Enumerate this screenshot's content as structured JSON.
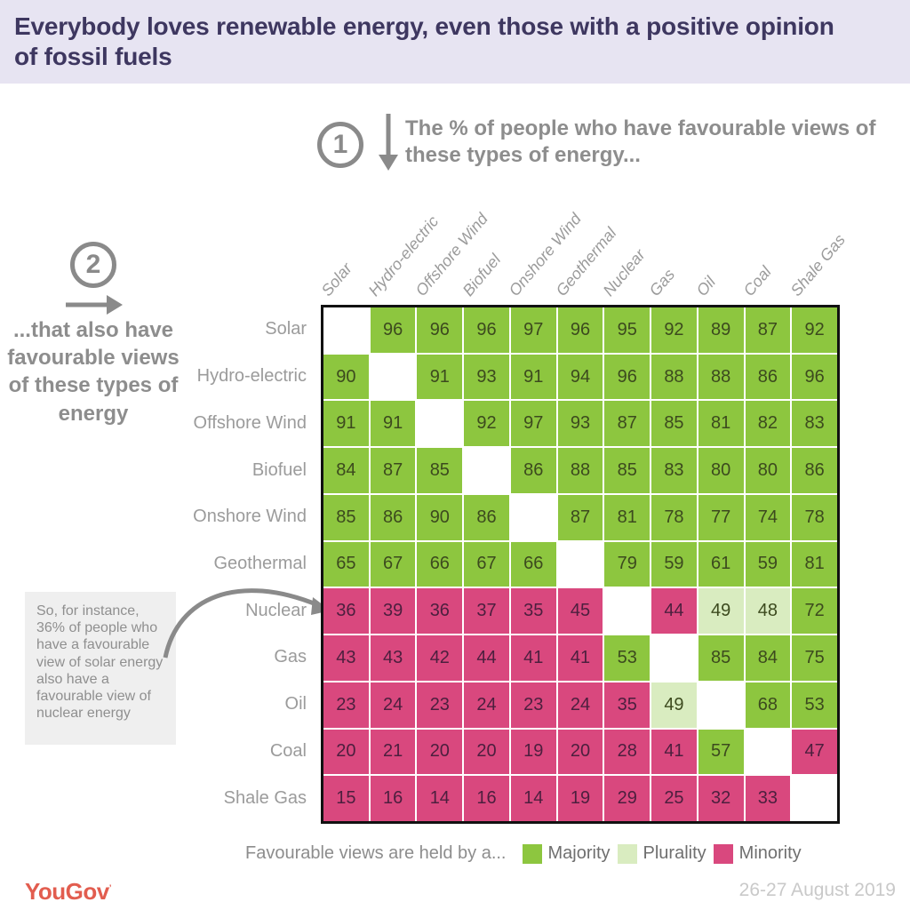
{
  "header": {
    "title": "Everybody loves renewable energy, even those with a positive opinion of fossil fuels"
  },
  "annotations": {
    "step1": {
      "number": "1",
      "text": "The % of people who have favourable views of these types of energy..."
    },
    "step2": {
      "number": "2",
      "text": "...that also have favourable views of these types of energy"
    },
    "callout": {
      "text": "So, for instance, 36% of people who have a favourable view of solar energy also have a favourable view of nuclear energy"
    }
  },
  "chart_data": {
    "type": "heatmap",
    "title": "Everybody loves renewable energy, even those with a positive opinion of fossil fuels",
    "columns": [
      "Solar",
      "Hydro-electric",
      "Offshore Wind",
      "Biofuel",
      "Onshore Wind",
      "Geothermal",
      "Nuclear",
      "Gas",
      "Oil",
      "Coal",
      "Shale Gas"
    ],
    "rows": [
      {
        "label": "Solar",
        "values": [
          null,
          96,
          96,
          96,
          97,
          96,
          95,
          92,
          89,
          87,
          92
        ],
        "classes": [
          null,
          "majority",
          "majority",
          "majority",
          "majority",
          "majority",
          "majority",
          "majority",
          "majority",
          "majority",
          "majority"
        ]
      },
      {
        "label": "Hydro-electric",
        "values": [
          90,
          null,
          91,
          93,
          91,
          94,
          96,
          88,
          88,
          86,
          96
        ],
        "classes": [
          "majority",
          null,
          "majority",
          "majority",
          "majority",
          "majority",
          "majority",
          "majority",
          "majority",
          "majority",
          "majority"
        ]
      },
      {
        "label": "Offshore Wind",
        "values": [
          91,
          91,
          null,
          92,
          97,
          93,
          87,
          85,
          81,
          82,
          83
        ],
        "classes": [
          "majority",
          "majority",
          null,
          "majority",
          "majority",
          "majority",
          "majority",
          "majority",
          "majority",
          "majority",
          "majority"
        ]
      },
      {
        "label": "Biofuel",
        "values": [
          84,
          87,
          85,
          null,
          86,
          88,
          85,
          83,
          80,
          80,
          86
        ],
        "classes": [
          "majority",
          "majority",
          "majority",
          null,
          "majority",
          "majority",
          "majority",
          "majority",
          "majority",
          "majority",
          "majority"
        ]
      },
      {
        "label": "Onshore Wind",
        "values": [
          85,
          86,
          90,
          86,
          null,
          87,
          81,
          78,
          77,
          74,
          78
        ],
        "classes": [
          "majority",
          "majority",
          "majority",
          "majority",
          null,
          "majority",
          "majority",
          "majority",
          "majority",
          "majority",
          "majority"
        ]
      },
      {
        "label": "Geothermal",
        "values": [
          65,
          67,
          66,
          67,
          66,
          null,
          79,
          59,
          61,
          59,
          81
        ],
        "classes": [
          "majority",
          "majority",
          "majority",
          "majority",
          "majority",
          null,
          "majority",
          "majority",
          "majority",
          "majority",
          "majority"
        ]
      },
      {
        "label": "Nuclear",
        "values": [
          36,
          39,
          36,
          37,
          35,
          45,
          null,
          44,
          49,
          48,
          72
        ],
        "classes": [
          "minority",
          "minority",
          "minority",
          "minority",
          "minority",
          "minority",
          null,
          "minority",
          "plurality",
          "plurality",
          "majority"
        ]
      },
      {
        "label": "Gas",
        "values": [
          43,
          43,
          42,
          44,
          41,
          41,
          53,
          null,
          85,
          84,
          75
        ],
        "classes": [
          "minority",
          "minority",
          "minority",
          "minority",
          "minority",
          "minority",
          "majority",
          null,
          "majority",
          "majority",
          "majority"
        ]
      },
      {
        "label": "Oil",
        "values": [
          23,
          24,
          23,
          24,
          23,
          24,
          35,
          49,
          null,
          68,
          53
        ],
        "classes": [
          "minority",
          "minority",
          "minority",
          "minority",
          "minority",
          "minority",
          "minority",
          "plurality",
          null,
          "majority",
          "majority"
        ]
      },
      {
        "label": "Coal",
        "values": [
          20,
          21,
          20,
          20,
          19,
          20,
          28,
          41,
          57,
          null,
          47
        ],
        "classes": [
          "minority",
          "minority",
          "minority",
          "minority",
          "minority",
          "minority",
          "minority",
          "minority",
          "majority",
          null,
          "minority"
        ]
      },
      {
        "label": "Shale Gas",
        "values": [
          15,
          16,
          14,
          16,
          14,
          19,
          29,
          25,
          32,
          33,
          null
        ],
        "classes": [
          "minority",
          "minority",
          "minority",
          "minority",
          "minority",
          "minority",
          "minority",
          "minority",
          "minority",
          "minority",
          null
        ]
      }
    ],
    "colors": {
      "majority": "#8dc63f",
      "plurality": "#d9ecc0",
      "minority": "#d9487e"
    },
    "legend_position": "bottom"
  },
  "legend": {
    "label": "Favourable views are held by a...",
    "items": [
      {
        "label": "Majority",
        "color": "#8dc63f"
      },
      {
        "label": "Plurality",
        "color": "#d9ecc0"
      },
      {
        "label": "Minority",
        "color": "#d9487e"
      }
    ]
  },
  "footer": {
    "logo": "YouGov",
    "date": "26-27 August 2019"
  }
}
